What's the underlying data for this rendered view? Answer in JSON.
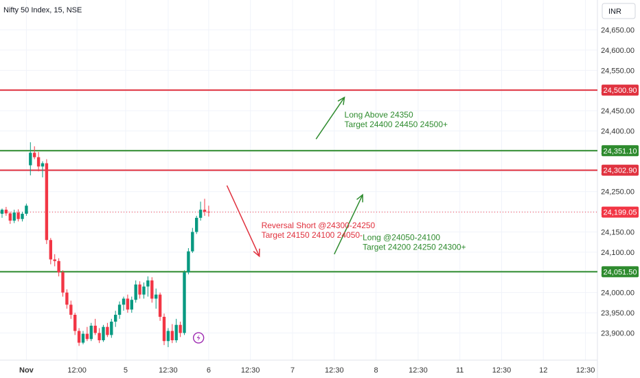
{
  "title": "Nifty 50 Index, 15, NSE",
  "currency": "INR",
  "colors": {
    "up": "#089981",
    "down": "#f23645",
    "red_line": "#e03340",
    "green_line": "#2e8b2e",
    "ann_red": "#e0303d",
    "ann_green": "#2e8b2e",
    "price_tag": "#f23645",
    "grid": "#f0f3fa",
    "event": "#9c27b0"
  },
  "chart_data": {
    "type": "candlestick",
    "title": "Nifty 50 Index, 15, NSE",
    "ylim": [
      23860,
      24690
    ],
    "y_ticks": [
      23900,
      23950,
      24000,
      24050,
      24100,
      24150,
      24200,
      24250,
      24300,
      24350,
      24400,
      24450,
      24500,
      24550,
      24600,
      24650
    ],
    "y_tick_labels": [
      "23,900.00",
      "23,950.00",
      "24,000.00",
      "24,050.00",
      "24,100.00",
      "24,150.00",
      "24,200.00",
      "24,250.00",
      "24,300.00",
      "24,350.00",
      "24,400.00",
      "24,450.00",
      "24,500.00",
      "24,550.00",
      "24,600.00",
      "24,650.00"
    ],
    "x_ticks": [
      {
        "label": "Nov",
        "bar": 6,
        "bold": true
      },
      {
        "label": "12:00",
        "bar": 18.5
      },
      {
        "label": "5",
        "bar": 30.5
      },
      {
        "label": "12:30",
        "bar": 41
      },
      {
        "label": "6",
        "bar": 51
      },
      {
        "label": "12:30",
        "bar": 61.3
      },
      {
        "label": "7",
        "bar": 71.7
      },
      {
        "label": "12:30",
        "bar": 82
      },
      {
        "label": "8",
        "bar": 92.3
      },
      {
        "label": "12:30",
        "bar": 102.7
      },
      {
        "label": "11",
        "bar": 113
      },
      {
        "label": "12:30",
        "bar": 123.3
      },
      {
        "label": "12",
        "bar": 133.6
      },
      {
        "label": "12:30",
        "bar": 144
      }
    ],
    "candles": [
      {
        "o": 24195,
        "h": 24208,
        "l": 24185,
        "c": 24205
      },
      {
        "o": 24205,
        "h": 24212,
        "l": 24190,
        "c": 24196
      },
      {
        "o": 24196,
        "h": 24200,
        "l": 24170,
        "c": 24178
      },
      {
        "o": 24178,
        "h": 24205,
        "l": 24172,
        "c": 24198
      },
      {
        "o": 24198,
        "h": 24206,
        "l": 24176,
        "c": 24182
      },
      {
        "o": 24182,
        "h": 24200,
        "l": 24176,
        "c": 24195
      },
      {
        "o": 24195,
        "h": 24220,
        "l": 24190,
        "c": 24215
      },
      {
        "o": 24315,
        "h": 24372,
        "l": 24290,
        "c": 24346
      },
      {
        "o": 24346,
        "h": 24362,
        "l": 24330,
        "c": 24335
      },
      {
        "o": 24335,
        "h": 24348,
        "l": 24300,
        "c": 24312
      },
      {
        "o": 24312,
        "h": 24325,
        "l": 24285,
        "c": 24320
      },
      {
        "o": 24320,
        "h": 24330,
        "l": 24120,
        "c": 24130
      },
      {
        "o": 24130,
        "h": 24135,
        "l": 24070,
        "c": 24082
      },
      {
        "o": 24082,
        "h": 24095,
        "l": 24065,
        "c": 24078
      },
      {
        "o": 24078,
        "h": 24085,
        "l": 24040,
        "c": 24050
      },
      {
        "o": 24050,
        "h": 24055,
        "l": 23990,
        "c": 24000
      },
      {
        "o": 24000,
        "h": 24008,
        "l": 23960,
        "c": 23970
      },
      {
        "o": 23970,
        "h": 23980,
        "l": 23935,
        "c": 23945
      },
      {
        "o": 23945,
        "h": 23950,
        "l": 23895,
        "c": 23905
      },
      {
        "o": 23905,
        "h": 23912,
        "l": 23868,
        "c": 23876
      },
      {
        "o": 23876,
        "h": 23905,
        "l": 23872,
        "c": 23898
      },
      {
        "o": 23898,
        "h": 23915,
        "l": 23880,
        "c": 23885
      },
      {
        "o": 23885,
        "h": 23925,
        "l": 23880,
        "c": 23918
      },
      {
        "o": 23918,
        "h": 23935,
        "l": 23895,
        "c": 23900
      },
      {
        "o": 23900,
        "h": 23912,
        "l": 23875,
        "c": 23882
      },
      {
        "o": 23882,
        "h": 23920,
        "l": 23878,
        "c": 23915
      },
      {
        "o": 23915,
        "h": 23925,
        "l": 23890,
        "c": 23895
      },
      {
        "o": 23895,
        "h": 23935,
        "l": 23888,
        "c": 23928
      },
      {
        "o": 23928,
        "h": 23955,
        "l": 23915,
        "c": 23945
      },
      {
        "o": 23945,
        "h": 23978,
        "l": 23935,
        "c": 23970
      },
      {
        "o": 23970,
        "h": 23990,
        "l": 23955,
        "c": 23985
      },
      {
        "o": 23985,
        "h": 23995,
        "l": 23950,
        "c": 23958
      },
      {
        "o": 23958,
        "h": 23990,
        "l": 23950,
        "c": 23982
      },
      {
        "o": 23982,
        "h": 24030,
        "l": 23975,
        "c": 24020
      },
      {
        "o": 24020,
        "h": 24028,
        "l": 23985,
        "c": 23995
      },
      {
        "o": 23995,
        "h": 24025,
        "l": 23985,
        "c": 24015
      },
      {
        "o": 24015,
        "h": 24040,
        "l": 23990,
        "c": 24030
      },
      {
        "o": 24030,
        "h": 24038,
        "l": 23975,
        "c": 23985
      },
      {
        "o": 23985,
        "h": 24010,
        "l": 23960,
        "c": 23995
      },
      {
        "o": 23995,
        "h": 24000,
        "l": 23930,
        "c": 23940
      },
      {
        "o": 23940,
        "h": 23948,
        "l": 23870,
        "c": 23880
      },
      {
        "o": 23880,
        "h": 23912,
        "l": 23865,
        "c": 23905
      },
      {
        "o": 23905,
        "h": 23922,
        "l": 23875,
        "c": 23882
      },
      {
        "o": 23882,
        "h": 23935,
        "l": 23876,
        "c": 23920
      },
      {
        "o": 23920,
        "h": 23928,
        "l": 23890,
        "c": 23900
      },
      {
        "o": 23900,
        "h": 24055,
        "l": 23895,
        "c": 24050
      },
      {
        "o": 24050,
        "h": 24110,
        "l": 24045,
        "c": 24102
      },
      {
        "o": 24102,
        "h": 24160,
        "l": 24098,
        "c": 24150
      },
      {
        "o": 24150,
        "h": 24190,
        "l": 24145,
        "c": 24185
      },
      {
        "o": 24185,
        "h": 24225,
        "l": 24178,
        "c": 24205
      },
      {
        "o": 24205,
        "h": 24232,
        "l": 24190,
        "c": 24200
      },
      {
        "o": 24200,
        "h": 24215,
        "l": 24188,
        "c": 24199
      }
    ],
    "levels": [
      {
        "value": 24500.9,
        "label": "24,500.90",
        "color": "red"
      },
      {
        "value": 24351.1,
        "label": "24,351.10",
        "color": "green"
      },
      {
        "value": 24302.9,
        "label": "24,302.90",
        "color": "red"
      },
      {
        "value": 24051.5,
        "label": "24,051.50",
        "color": "green"
      }
    ],
    "last_price": {
      "value": 24199.05,
      "label": "24,199.05"
    },
    "annotations": [
      {
        "lines": [
          "Long Above 24350",
          "Target 24400 24450 24500+"
        ],
        "color": "green",
        "bar": 84.5,
        "y": 24433
      },
      {
        "lines": [
          "Reversal Short @24300-24250",
          "Target 24150 24100 24050-"
        ],
        "color": "red",
        "bar": 64,
        "y": 24159
      },
      {
        "lines": [
          "Long @24050-24100",
          "Target 24200 24250 24300+"
        ],
        "color": "green",
        "bar": 89,
        "y": 24130
      }
    ],
    "arrows": [
      {
        "color": "green",
        "from": [
          77.5,
          24380
        ],
        "to": [
          84.5,
          24483
        ]
      },
      {
        "color": "red",
        "from": [
          55.5,
          24265
        ],
        "to": [
          63.5,
          24090
        ]
      },
      {
        "color": "green",
        "from": [
          82,
          24095
        ],
        "to": [
          89,
          24242
        ]
      }
    ],
    "event_marker": {
      "bar": 48.5,
      "y": 23888
    }
  }
}
